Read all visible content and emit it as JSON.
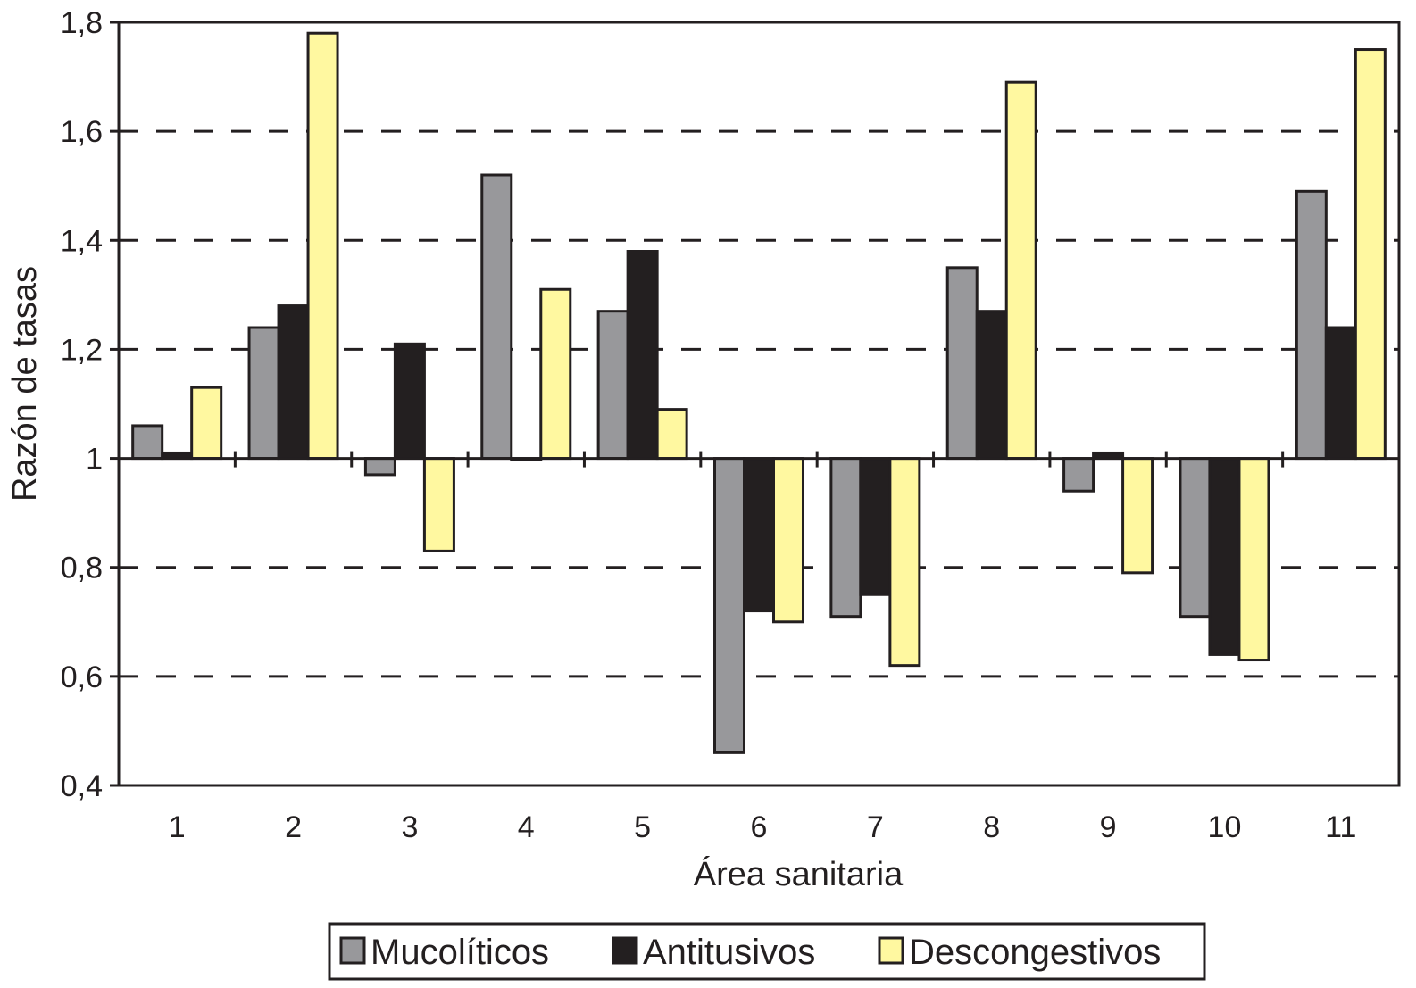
{
  "chart_data": {
    "type": "bar",
    "title": "",
    "xlabel": "Área sanitaria",
    "ylabel": "Razón de tasas",
    "ylim": [
      0.4,
      1.8
    ],
    "baseline": 1,
    "yticks": [
      "0,4",
      "0,6",
      "0,8",
      "1",
      "1,2",
      "1,4",
      "1,6",
      "1,8"
    ],
    "ytick_values": [
      0.4,
      0.6,
      0.8,
      1.0,
      1.2,
      1.4,
      1.6,
      1.8
    ],
    "grid": "dashed horizontal",
    "legend_position": "bottom",
    "categories": [
      "1",
      "2",
      "3",
      "4",
      "5",
      "6",
      "7",
      "8",
      "9",
      "10",
      "11"
    ],
    "series": [
      {
        "name": "Mucolíticos",
        "color": "#98989b",
        "values": [
          1.06,
          1.24,
          0.97,
          1.52,
          1.27,
          0.46,
          0.71,
          1.35,
          0.94,
          0.71,
          1.49
        ]
      },
      {
        "name": "Antitusivos",
        "color": "#231f20",
        "values": [
          1.01,
          1.28,
          1.21,
          1.0,
          1.38,
          0.72,
          0.75,
          1.27,
          1.01,
          0.64,
          1.24
        ]
      },
      {
        "name": "Descongestivos",
        "color": "#fff8a0",
        "values": [
          1.13,
          1.78,
          0.83,
          1.31,
          1.09,
          0.7,
          0.62,
          1.69,
          0.79,
          0.63,
          1.75
        ]
      }
    ]
  }
}
